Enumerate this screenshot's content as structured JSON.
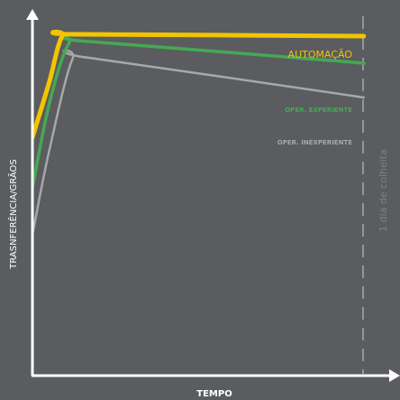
{
  "chart_data": {
    "type": "line",
    "title": "",
    "xlabel": "TEMPO",
    "ylabel": "TRASNFERÊNCIA/GRÃOS",
    "annotations": [
      {
        "text": "1 dia de colheita"
      }
    ],
    "legend": "inline-right",
    "grid": false,
    "series": [
      {
        "name": "AUTOMAÇÃO",
        "color": "#f2c500",
        "points": [
          [
            0,
            0.66
          ],
          [
            0.05,
            0.81
          ],
          [
            0.09,
            0.94
          ],
          [
            0.14,
            0.945
          ],
          [
            1,
            0.94
          ]
        ]
      },
      {
        "name": "OPER. EXPERIENTE",
        "color": "#46a853",
        "points": [
          [
            0,
            0.52
          ],
          [
            0.05,
            0.75
          ],
          [
            0.11,
            0.92
          ],
          [
            0.17,
            0.925
          ],
          [
            1,
            0.865
          ]
        ]
      },
      {
        "name": "OPER. INEXPERIENTE",
        "color": "#a7a8aa",
        "points": [
          [
            0,
            0.39
          ],
          [
            0.05,
            0.62
          ],
          [
            0.12,
            0.875
          ],
          [
            0.17,
            0.88
          ],
          [
            1,
            0.77
          ]
        ]
      }
    ]
  },
  "colors": {
    "background": "#5a5c5f",
    "axis": "#ffffff",
    "marker": "#a7a8aa"
  }
}
